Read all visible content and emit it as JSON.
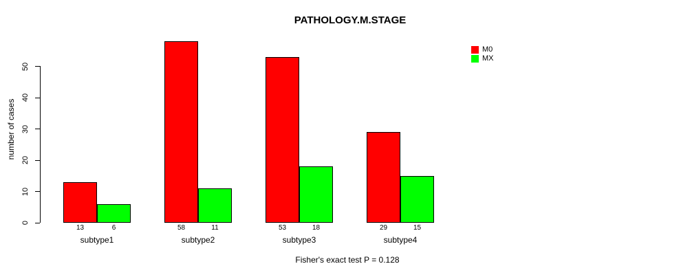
{
  "chart_data": {
    "type": "bar",
    "grouped": true,
    "title": "PATHOLOGY.M.STAGE",
    "xlabel": "",
    "ylabel": "number of cases",
    "categories": [
      "subtype1",
      "subtype2",
      "subtype3",
      "subtype4"
    ],
    "series": [
      {
        "name": "M0",
        "color": "#FF0000",
        "values": [
          13,
          58,
          53,
          29
        ]
      },
      {
        "name": "MX",
        "color": "#00FF00",
        "values": [
          6,
          11,
          18,
          15
        ]
      }
    ],
    "bar_value_labels_shown": true,
    "yticks": [
      0,
      10,
      20,
      30,
      40,
      50
    ],
    "ylim": [
      0,
      58
    ],
    "grid": false,
    "legend_position": "right-outside",
    "annotation": "Fisher's exact test P = 0.128",
    "bar_border_color": "#000000",
    "axis_color": "#000000",
    "background_color": "#FFFFFF"
  }
}
